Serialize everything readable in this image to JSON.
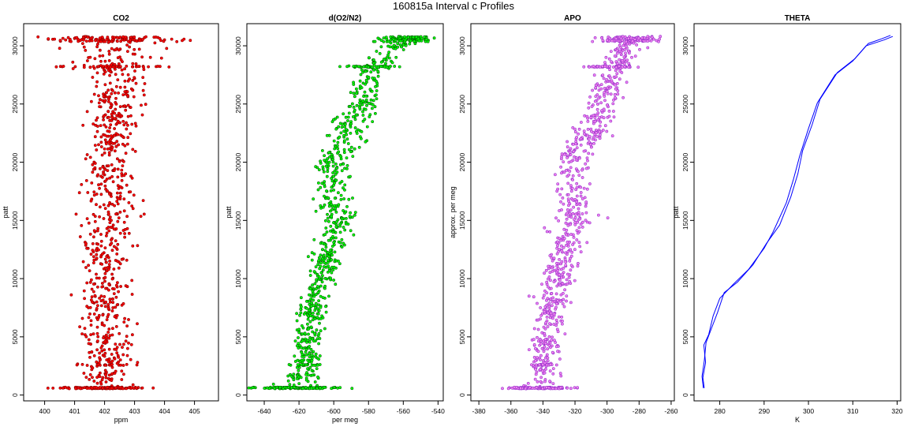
{
  "figure_title": "160815a   Interval c Profiles",
  "chart_data": [
    {
      "type": "scatter",
      "title": "CO2",
      "xlabel": "ppm",
      "ylabel": "patt",
      "xlim": [
        399.3,
        405.8
      ],
      "ylim": [
        -500,
        31900
      ],
      "xticks": [
        400,
        401,
        402,
        403,
        404,
        405
      ],
      "yticks": [
        0,
        5000,
        10000,
        15000,
        20000,
        25000,
        30000
      ],
      "colors": {
        "fill": "#ff0000",
        "edge": "#8b0000"
      },
      "series": [
        {
          "points": []
        }
      ],
      "profile": {
        "y": [
          600,
          2500,
          5000,
          7500,
          10000,
          12500,
          15000,
          17500,
          20000,
          22500,
          25000,
          27500,
          28200,
          30500
        ],
        "x": [
          402.0,
          402.0,
          402.0,
          402.0,
          402.0,
          401.9,
          402.3,
          402.2,
          402.1,
          402.3,
          402.4,
          402.4,
          402.4,
          402.3
        ],
        "spread": [
          0.6,
          0.6,
          0.6,
          0.55,
          0.6,
          0.65,
          0.6,
          0.6,
          0.55,
          0.5,
          0.55,
          0.5,
          1.0,
          1.0
        ]
      }
    },
    {
      "type": "scatter",
      "title": "d(O2/N2)",
      "xlabel": "per meg",
      "ylabel": "patt",
      "xlim": [
        -650,
        -537
      ],
      "ylim": [
        -500,
        31900
      ],
      "xticks": [
        -640,
        -620,
        -600,
        -580,
        -560,
        -540
      ],
      "yticks": [
        0,
        5000,
        10000,
        15000,
        20000,
        25000,
        30000
      ],
      "colors": {
        "fill": "#00ff00",
        "edge": "#006400"
      },
      "series": [
        {
          "points": []
        }
      ],
      "profile": {
        "y": [
          600,
          2500,
          5000,
          7500,
          10000,
          12500,
          15000,
          17500,
          20000,
          22500,
          25000,
          27500,
          28200,
          30500
        ],
        "x": [
          -622,
          -616,
          -615,
          -612,
          -607,
          -604,
          -597,
          -602,
          -600,
          -591,
          -584,
          -579,
          -578,
          -557
        ],
        "spread": [
          10,
          5,
          5,
          6,
          6,
          6,
          7,
          7,
          7,
          7,
          7,
          6,
          8,
          7
        ]
      }
    },
    {
      "type": "scatter",
      "title": "APO",
      "xlabel": "",
      "ylabel": "approx. per meg",
      "xlim": [
        -385,
        -258
      ],
      "ylim": [
        -500,
        31900
      ],
      "xticks": [
        -380,
        -360,
        -340,
        -320,
        -300,
        -280,
        -260
      ],
      "yticks": [
        0,
        5000,
        10000,
        15000,
        20000,
        25000,
        30000
      ],
      "colors": {
        "fill": "#ee82ee",
        "edge": "#9932cc"
      },
      "series": [
        {
          "points": []
        }
      ],
      "profile": {
        "y": [
          600,
          2500,
          5000,
          7500,
          10000,
          12500,
          15000,
          17500,
          20000,
          22500,
          25000,
          27500,
          28200,
          30500
        ],
        "x": [
          -342,
          -340,
          -338,
          -336,
          -330,
          -326,
          -320,
          -322,
          -320,
          -311,
          -303,
          -298,
          -296,
          -285
        ],
        "spread": [
          9,
          6,
          6,
          7,
          7,
          7,
          8,
          8,
          8,
          8,
          8,
          7,
          9,
          8
        ]
      }
    },
    {
      "type": "line",
      "title": "THETA",
      "xlabel": "K",
      "ylabel": "patt",
      "xlim": [
        274.2,
        320.8
      ],
      "ylim": [
        -500,
        31900
      ],
      "xticks": [
        280,
        290,
        300,
        310,
        320
      ],
      "yticks": [
        0,
        5000,
        10000,
        15000,
        20000,
        25000,
        30000
      ],
      "colors": {
        "line": "#0000ff"
      },
      "series": [
        {
          "x": [
            276.5,
            276.2,
            276.8,
            276.4,
            277.5,
            278.5,
            280.0,
            283.0,
            286.5,
            290.0,
            292.0,
            295.0,
            296.6,
            298.0,
            300.0,
            302.0,
            306.0,
            310.0,
            313.0,
            317.0,
            319.0
          ],
          "y": [
            600,
            1500,
            2800,
            4300,
            5200,
            6800,
            8300,
            9500,
            10800,
            12600,
            14000,
            16500,
            18500,
            20500,
            22900,
            25100,
            27500,
            28700,
            30000,
            30500,
            30800
          ]
        },
        {
          "x": [
            276.3,
            276.0,
            276.5,
            276.9,
            278.0,
            279.5,
            281.0,
            284.0,
            287.5,
            290.5,
            293.5,
            296.0,
            297.6,
            298.7,
            300.8,
            302.6,
            306.5,
            310.5,
            313.5,
            316.5,
            318.5
          ],
          "y": [
            600,
            1600,
            2900,
            4500,
            5600,
            7100,
            8800,
            9700,
            11200,
            13000,
            14600,
            17000,
            19000,
            21000,
            23200,
            25400,
            27700,
            28900,
            30200,
            30600,
            30900
          ]
        }
      ]
    }
  ]
}
